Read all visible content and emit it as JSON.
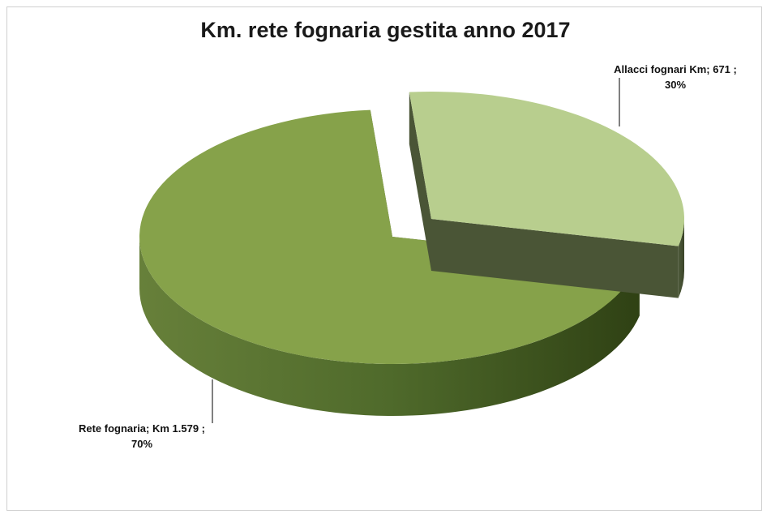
{
  "chart_data": {
    "type": "pie",
    "title": "Km. rete fognaria gestita anno 2017",
    "slices": [
      {
        "label": "Allacci fognari Km",
        "value": 671,
        "value_text": "671",
        "percent": 30,
        "percent_text": "30%",
        "color": "#b8ce8e",
        "exploded": true
      },
      {
        "label": "Rete fognaria",
        "value": 1579,
        "value_text": "Km 1.579",
        "percent": 70,
        "percent_text": "70%",
        "color": "#86a24a",
        "exploded": false
      }
    ],
    "legend": "none",
    "style": "3d-exploded"
  },
  "labels": {
    "allacci_line1": "Allacci fognari Km; 671 ;",
    "allacci_line2": "30%",
    "rete_line1": "Rete fognaria; Km 1.579 ;",
    "rete_line2": "70%"
  }
}
